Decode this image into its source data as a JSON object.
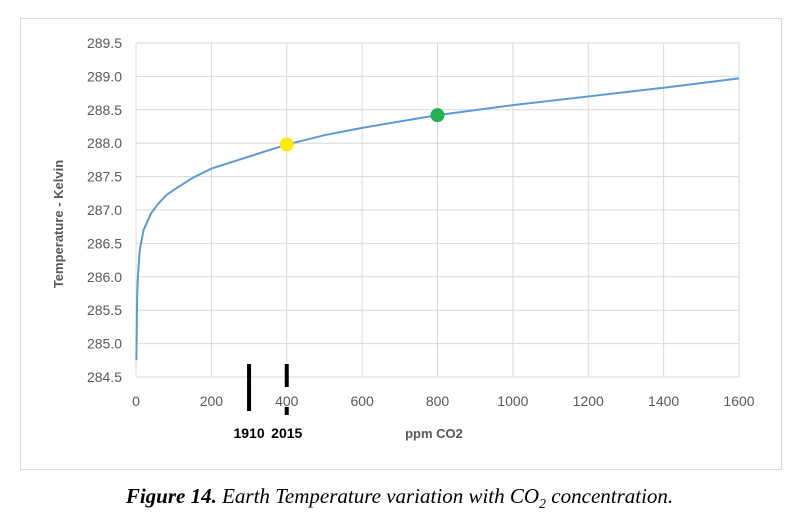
{
  "chart_data": {
    "type": "line",
    "xlabel": "ppm CO2",
    "ylabel": "Temperature - Kelvin",
    "xlim": [
      0,
      1600
    ],
    "ylim": [
      284.5,
      289.5
    ],
    "x_ticks": [
      "0",
      "200",
      "400",
      "600",
      "800",
      "1000",
      "1200",
      "1400",
      "1600"
    ],
    "y_ticks": [
      "284.5",
      "285.0",
      "285.5",
      "286.0",
      "286.5",
      "287.0",
      "287.5",
      "288.0",
      "288.5",
      "289.0",
      "289.5"
    ],
    "grid": true,
    "series": [
      {
        "color": "#5b9bd5",
        "x": [
          1,
          3,
          5,
          10,
          20,
          40,
          60,
          80,
          100,
          150,
          200,
          300,
          400,
          500,
          600,
          800,
          1000,
          1200,
          1400,
          1600
        ],
        "y": [
          284.75,
          285.7,
          286.0,
          286.4,
          286.7,
          286.95,
          287.1,
          287.22,
          287.3,
          287.48,
          287.62,
          287.8,
          287.98,
          288.12,
          288.23,
          288.42,
          288.57,
          288.7,
          288.83,
          288.97
        ]
      }
    ],
    "points": [
      {
        "x": 400,
        "y": 287.98,
        "color": "#ffeb00"
      },
      {
        "x": 800,
        "y": 288.42,
        "color": "#22b14c"
      }
    ],
    "year_markers": [
      {
        "x": 300,
        "label": "1910"
      },
      {
        "x": 400,
        "label": "2015"
      }
    ]
  },
  "caption": {
    "figure_label": "Figure 14.",
    "text_before": " Earth Temperature variation with CO",
    "subscript": "2",
    "text_after": " concentration."
  }
}
